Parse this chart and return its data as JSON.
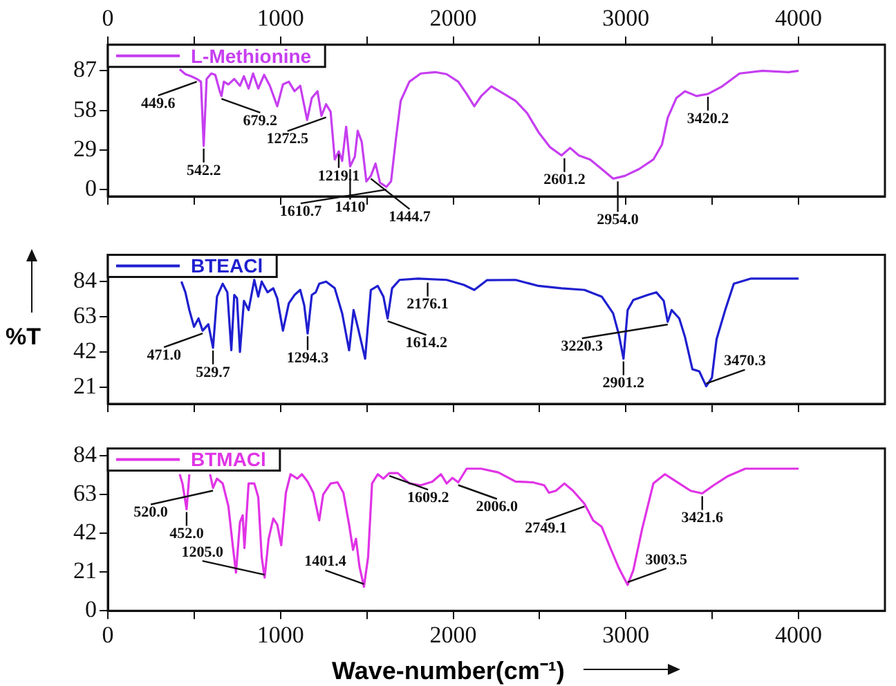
{
  "chart_data": [
    {
      "type": "line",
      "legend": "top left",
      "xlim": [
        0,
        4500
      ],
      "xticks": [
        0,
        {
          "value": 500,
          "label": null
        },
        1000,
        {
          "value": 1500,
          "label": null
        },
        2000,
        {
          "value": 2500,
          "label": null
        },
        3000,
        {
          "value": 3500,
          "label": null
        },
        4000
      ],
      "x2lim": [
        0,
        4500
      ],
      "x2ticks": [
        0,
        {
          "value": 500,
          "label": null
        },
        1000,
        {
          "value": 1500,
          "label": null
        },
        2000,
        {
          "value": 2500,
          "label": null
        },
        3000,
        {
          "value": 3500,
          "label": null
        },
        4000
      ],
      "ylim": [
        -5,
        106
      ],
      "yticks": [
        0,
        29,
        58,
        87
      ],
      "tick_labels": "y",
      "series": [
        {
          "name": "L-Methionine",
          "color": "#c63ef0",
          "x": [
            416,
            449,
            482,
            515,
            539,
            555,
            572,
            599,
            622,
            648,
            658,
            672,
            698,
            732,
            765,
            788,
            815,
            841,
            871,
            905,
            938,
            981,
            1014,
            1048,
            1081,
            1114,
            1154,
            1181,
            1214,
            1237,
            1264,
            1290,
            1314,
            1337,
            1357,
            1380,
            1403,
            1430,
            1447,
            1470,
            1497,
            1523,
            1550,
            1576,
            1613,
            1640,
            1669,
            1696,
            1746,
            1812,
            1896,
            1962,
            2029,
            2078,
            2122,
            2162,
            2221,
            2295,
            2361,
            2428,
            2494,
            2561,
            2627,
            2677,
            2727,
            2793,
            2860,
            2926,
            2993,
            3076,
            3159,
            3209,
            3242,
            3292,
            3342,
            3409,
            3475,
            3558,
            3658,
            3791,
            3941,
            4000
          ],
          "values": [
            88,
            84.5,
            83,
            81,
            79,
            32,
            81,
            85,
            84,
            72,
            68.5,
            79,
            77,
            81,
            76,
            83,
            74,
            85,
            74,
            84,
            76,
            61,
            77,
            79,
            72,
            76,
            51,
            67,
            72,
            54,
            62.5,
            57,
            22,
            28,
            21,
            46,
            17,
            24,
            43,
            35,
            6,
            10,
            19,
            5,
            2,
            6,
            38,
            65,
            79,
            85,
            86,
            84.5,
            79,
            70,
            61,
            68.5,
            75.6,
            70,
            65,
            56,
            42,
            31,
            25,
            30.5,
            25,
            22,
            15,
            8,
            10,
            15,
            22,
            33,
            52.5,
            67,
            72,
            68.5,
            70,
            75.6,
            85,
            87,
            86,
            87
          ]
        }
      ],
      "annotations": [
        {
          "text": "449.6",
          "x": 515,
          "y": 81
        },
        {
          "text": "542.2",
          "x": 555,
          "y": 32
        },
        {
          "text": "679.2",
          "x": 658,
          "y": 68.5
        },
        {
          "text": "1272.5",
          "x": 1264,
          "y": 55
        },
        {
          "text": "1219.1",
          "x": 1337,
          "y": 28
        },
        {
          "text": "1410",
          "x": 1403,
          "y": 17
        },
        {
          "text": "1444.7",
          "x": 1523,
          "y": 10
        },
        {
          "text": "1610.7",
          "x": 1613,
          "y": 2
        },
        {
          "text": "2601.2",
          "x": 2644,
          "y": 25
        },
        {
          "text": "2954.0",
          "x": 2953,
          "y": 8
        },
        {
          "text": "3420.2",
          "x": 3475,
          "y": 70
        }
      ]
    },
    {
      "type": "line",
      "legend": "top left",
      "xlim": [
        0,
        4500
      ],
      "xticks": [
        0,
        {
          "value": 500,
          "label": null
        },
        1000,
        {
          "value": 1500,
          "label": null
        },
        2000,
        {
          "value": 2500,
          "label": null
        },
        3000,
        {
          "value": 3500,
          "label": null
        },
        4000
      ],
      "ylim": [
        11,
        100
      ],
      "yticks": [
        21,
        42,
        63,
        84
      ],
      "tick_labels": "y",
      "ylabel": "%T",
      "series": [
        {
          "name": "BTEACl",
          "color": "#1f1fd0",
          "x": [
            426,
            449,
            472,
            499,
            525,
            549,
            582,
            609,
            632,
            665,
            692,
            715,
            732,
            748,
            765,
            788,
            815,
            848,
            871,
            891,
            925,
            958,
            981,
            1014,
            1048,
            1081,
            1114,
            1137,
            1157,
            1181,
            1204,
            1224,
            1264,
            1314,
            1357,
            1397,
            1423,
            1447,
            1490,
            1523,
            1563,
            1596,
            1620,
            1646,
            1689,
            1796,
            1962,
            2062,
            2122,
            2195,
            2361,
            2494,
            2627,
            2760,
            2860,
            2926,
            2960,
            2986,
            3010,
            3043,
            3126,
            3176,
            3219,
            3242,
            3265,
            3309,
            3342,
            3385,
            3425,
            3465,
            3498,
            3525,
            3575,
            3625,
            3725,
            4000
          ],
          "values": [
            84,
            77.6,
            67,
            57,
            62,
            54.7,
            58.5,
            44.5,
            75,
            82.7,
            77.6,
            43,
            76,
            74,
            42,
            72.5,
            67,
            85,
            75,
            84,
            77.6,
            80,
            74,
            54.7,
            71,
            76,
            79,
            70,
            53,
            76,
            77.6,
            82.7,
            84,
            80,
            65,
            43,
            67,
            57,
            38,
            79,
            81.4,
            75,
            62,
            80,
            85,
            85.8,
            85,
            82,
            79,
            84.8,
            85,
            81.4,
            80,
            79,
            75,
            65,
            52,
            38,
            67,
            73,
            76,
            77.6,
            72.5,
            60,
            67,
            62,
            51,
            31.7,
            30.4,
            21.5,
            26.6,
            49.6,
            67,
            82.7,
            85.8,
            85.8
          ]
        }
      ],
      "annotations": [
        {
          "text": "471.0",
          "x": 549,
          "y": 54.7
        },
        {
          "text": "529.7",
          "x": 609,
          "y": 44.5
        },
        {
          "text": "1294.3",
          "x": 1157,
          "y": 53
        },
        {
          "text": "1614.2",
          "x": 1620,
          "y": 62
        },
        {
          "text": "2176.1",
          "x": 1852,
          "y": 85
        },
        {
          "text": "2901.2",
          "x": 2986,
          "y": 38
        },
        {
          "text": "3220.3",
          "x": 3242,
          "y": 60
        },
        {
          "text": "3470.3",
          "x": 3465,
          "y": 21.5
        }
      ]
    },
    {
      "type": "line",
      "legend": "top left",
      "xlim": [
        0,
        4500
      ],
      "xticks": [
        0,
        {
          "value": 500,
          "label": null
        },
        1000,
        {
          "value": 1500,
          "label": null
        },
        2000,
        {
          "value": 2500,
          "label": null
        },
        3000,
        {
          "value": 3500,
          "label": null
        },
        4000
      ],
      "ylim": [
        0,
        88
      ],
      "yticks": [
        0,
        21,
        42,
        63,
        84
      ],
      "xlabel": "Wave-number(cm⁻¹)",
      "series": [
        {
          "name": "BTMACl",
          "color": "#e033e6",
          "x": [
            416,
            432,
            456,
            472,
            520,
            592,
            609,
            632,
            665,
            698,
            725,
            742,
            765,
            781,
            791,
            815,
            848,
            871,
            891,
            908,
            931,
            958,
            981,
            1004,
            1031,
            1058,
            1097,
            1124,
            1157,
            1190,
            1224,
            1247,
            1290,
            1330,
            1364,
            1397,
            1420,
            1437,
            1457,
            1483,
            1507,
            1530,
            1563,
            1596,
            1630,
            1679,
            1746,
            1812,
            1879,
            1929,
            1962,
            1995,
            2029,
            2078,
            2162,
            2261,
            2361,
            2461,
            2527,
            2554,
            2594,
            2644,
            2694,
            2760,
            2810,
            2860,
            2910,
            2960,
            3010,
            3043,
            3093,
            3159,
            3226,
            3292,
            3375,
            3442,
            3508,
            3591,
            3691,
            4000
          ],
          "values": [
            74,
            69,
            55,
            74,
            null,
            74,
            66.6,
            71.6,
            69,
            56.7,
            34,
            20.6,
            48,
            51.7,
            34,
            69,
            69,
            61.6,
            29,
            18,
            39,
            50,
            46.7,
            35.5,
            64,
            74,
            71.6,
            74,
            70,
            64,
            49,
            63,
            69,
            69.6,
            64,
            46.7,
            33,
            39,
            24,
            13,
            29,
            69,
            74,
            71.6,
            74.6,
            74.6,
            69,
            68,
            70,
            74,
            69,
            72,
            69.6,
            77,
            77,
            75,
            70,
            69.6,
            68,
            64,
            65,
            69,
            65,
            58,
            49,
            45.5,
            34,
            23,
            14,
            22,
            44,
            69,
            74,
            70,
            65,
            63.6,
            68,
            73,
            77,
            77
          ]
        }
      ],
      "annotations": [
        {
          "text": "452.0",
          "x": 456,
          "y": 55
        },
        {
          "text": "520.0",
          "x": 609,
          "y": 66.6
        },
        {
          "text": "1205.0",
          "x": 908,
          "y": 18
        },
        {
          "text": "1401.4",
          "x": 1483,
          "y": 13
        },
        {
          "text": "1609.2",
          "x": 1630,
          "y": 74.6
        },
        {
          "text": "2006.0",
          "x": 2029,
          "y": 69.6
        },
        {
          "text": "2749.1",
          "x": 2760,
          "y": 58
        },
        {
          "text": "3003.5",
          "x": 3010,
          "y": 14
        },
        {
          "text": "3421.6",
          "x": 3442,
          "y": 63.6
        }
      ]
    }
  ]
}
